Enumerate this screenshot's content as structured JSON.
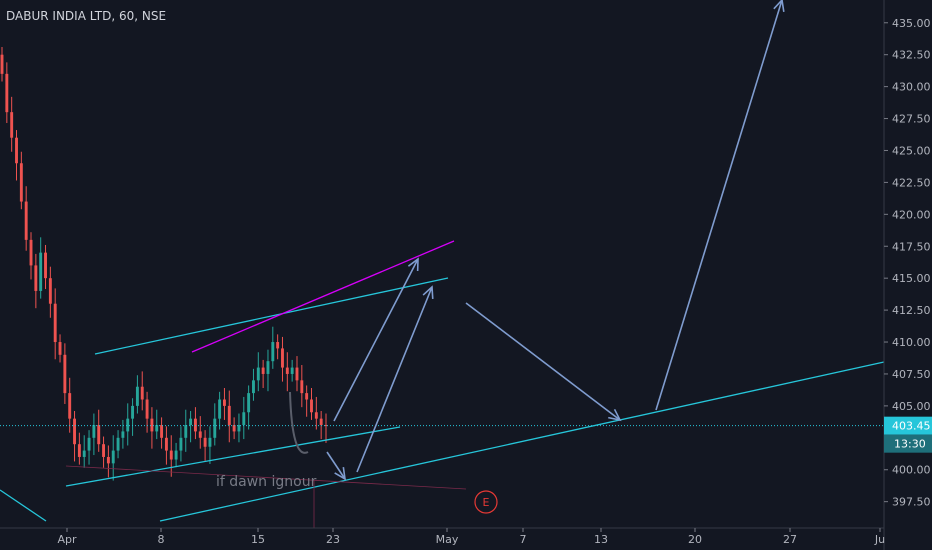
{
  "header": {
    "symbol_title": "DABUR INDIA LTD, 60, NSE"
  },
  "price_axis": {
    "labels": [
      "435.00",
      "432.50",
      "430.00",
      "427.50",
      "425.00",
      "422.50",
      "420.00",
      "417.50",
      "415.00",
      "412.50",
      "410.00",
      "407.50",
      "405.00",
      "400.00",
      "397.50"
    ],
    "current_price": "403.45",
    "countdown": "13:30"
  },
  "time_axis": {
    "labels": [
      "Apr",
      "8",
      "15",
      "23",
      "May",
      "7",
      "13",
      "20",
      "27",
      "Ju"
    ]
  },
  "annotations": {
    "note_text": "if dawn ignour",
    "marker_letter": "E"
  },
  "colors": {
    "background": "#131722",
    "up_candle": "#26a69a",
    "down_candle": "#ef5350",
    "channel_line": "#26c6da",
    "resistance_line": "#d500f9",
    "arrow": "#7f9ccf",
    "price_line": "#26c6da",
    "marker": "#e53935"
  },
  "chart_data": {
    "type": "candlestick",
    "title": "DABUR INDIA LTD, 60, NSE",
    "ylim": [
      396.2,
      436.0
    ],
    "x_ticks": [
      "Apr",
      "8",
      "15",
      "23",
      "May",
      "7",
      "13",
      "20",
      "27",
      "Ju"
    ],
    "y_ticks": [
      397.5,
      400,
      405,
      407.5,
      410,
      412.5,
      415,
      417.5,
      420,
      422.5,
      425,
      427.5,
      430,
      432.5,
      435
    ],
    "last_price": 403.45,
    "close_series": [
      431,
      428,
      426,
      424,
      421,
      418,
      416,
      414,
      417,
      415,
      413,
      410,
      409,
      406,
      404,
      402,
      401,
      401.5,
      402.5,
      403.5,
      402,
      401,
      400.5,
      401.5,
      402.5,
      403,
      404,
      405,
      406.5,
      405.5,
      404,
      403,
      403.5,
      402.5,
      401.5,
      400.8,
      401.5,
      402.5,
      403.5,
      404,
      403,
      402.5,
      401.8,
      402.5,
      404,
      405.5,
      405,
      403.5,
      403,
      403.5,
      404.5,
      406,
      407,
      408,
      407.5,
      408.5,
      410,
      409.5,
      408,
      407.5,
      408,
      407,
      406,
      405.5,
      404.5,
      404,
      403.5,
      403.45
    ]
  }
}
